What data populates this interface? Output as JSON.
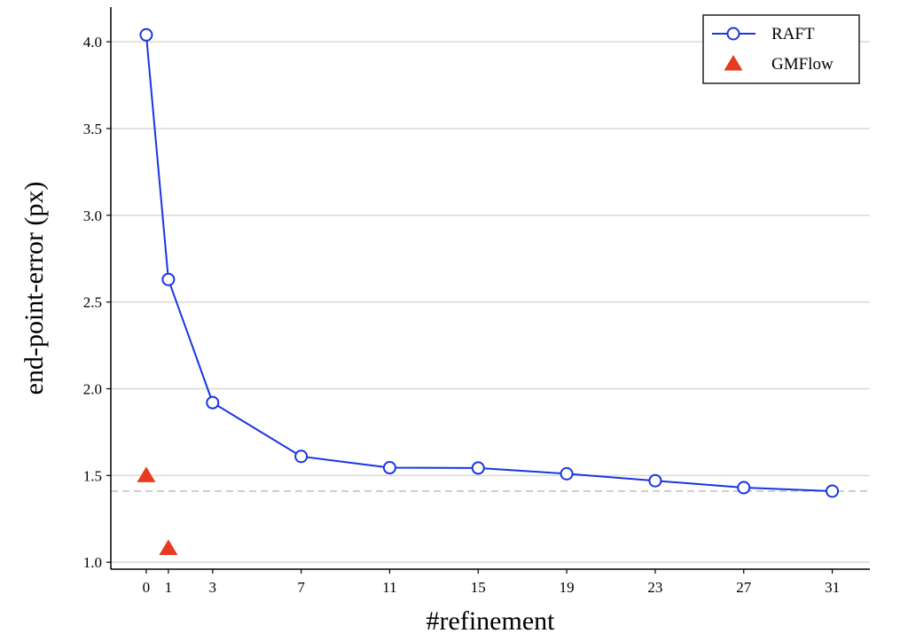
{
  "chart_data": {
    "type": "line",
    "title": "",
    "xlabel": "#refinement",
    "ylabel": "end-point-error (px)",
    "xlim": [
      -1.6,
      32.7
    ],
    "ylim": [
      0.96,
      4.2
    ],
    "x_ticks": [
      0,
      1,
      3,
      7,
      11,
      15,
      19,
      23,
      27,
      31
    ],
    "y_ticks": [
      1.0,
      1.5,
      2.0,
      2.5,
      3.0,
      3.5,
      4.0
    ],
    "grid": "horizontal",
    "legend_position": "top-right",
    "reference_line": {
      "y": 1.41,
      "style": "dashed",
      "color": "#cccccc"
    },
    "series": [
      {
        "name": "RAFT",
        "style": "line-open-circle",
        "color": "#1a35e0",
        "x": [
          0,
          1,
          3,
          7,
          11,
          15,
          19,
          23,
          27,
          31
        ],
        "y": [
          4.04,
          2.63,
          1.92,
          1.61,
          1.545,
          1.543,
          1.51,
          1.47,
          1.43,
          1.41
        ]
      },
      {
        "name": "GMFlow",
        "style": "triangle-marker",
        "color": "#e83a1e",
        "x": [
          0,
          1
        ],
        "y": [
          1.5,
          1.08
        ]
      }
    ]
  }
}
